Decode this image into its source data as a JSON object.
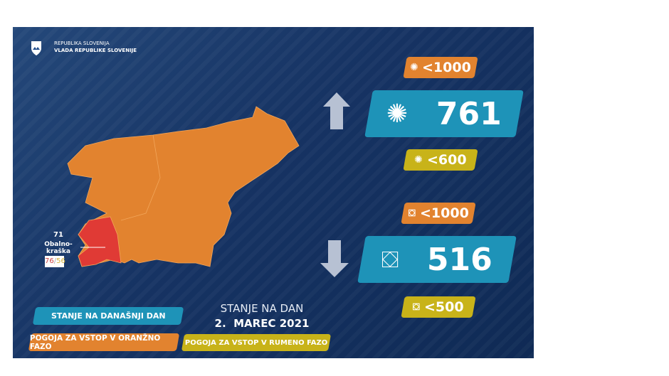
{
  "header": {
    "line1": "REPUBLIKA SLOVENIJA",
    "line2": "VLADA REPUBLIKE SLOVENIJE"
  },
  "map": {
    "region_value": "71",
    "region_name": "Obalno-kraška",
    "region_ratio_red": "76",
    "region_ratio_sep": "/",
    "region_ratio_yellow": "56",
    "colors": {
      "orange": "#e2832f",
      "red": "#e03a35"
    }
  },
  "cases": {
    "threshold_orange": "<1000",
    "value": "761",
    "threshold_yellow": "<600",
    "trend": "up"
  },
  "hospital": {
    "threshold_orange": "<1000",
    "value": "516",
    "threshold_yellow": "<500",
    "trend": "down"
  },
  "legend": {
    "today": "STANJE NA DANAŠNJI DAN",
    "orange": "POGOJA ZA VSTOP V ORANŽNO FAZO",
    "yellow": "POGOJA ZA VSTOP V RUMENO FAZO"
  },
  "date": {
    "label": "STANJE NA DAN",
    "value": "2.  MAREC 2021"
  },
  "colors": {
    "blue": "#1e93b8",
    "orange": "#e2832f",
    "yellow": "#c8b319",
    "background": "#163363"
  }
}
